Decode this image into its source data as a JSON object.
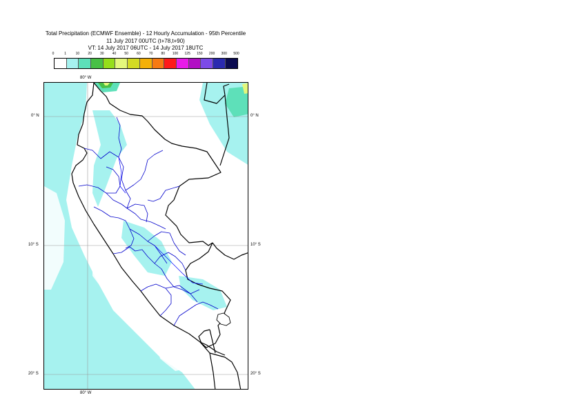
{
  "title": {
    "line1": "Total Precipitation (ECMWF Ensemble) - 12 Hourly Accumulation - 95th Percentile",
    "line2": "11 July 2017 00UTC (t+78,t+90)",
    "line3": "VT: 14 July 2017 06UTC - 14 July 2017 18UTC"
  },
  "legend": {
    "labels": [
      "0",
      "1",
      "10",
      "20",
      "30",
      "40",
      "50",
      "60",
      "70",
      "80",
      "100",
      "125",
      "150",
      "200",
      "300",
      "500"
    ],
    "colors": [
      "#ffffff",
      "#a6f2ef",
      "#5ee0b9",
      "#48c046",
      "#96de1a",
      "#e4f77c",
      "#d3da24",
      "#f4b007",
      "#f67a12",
      "#fe1a1a",
      "#e81be8",
      "#b20fc4",
      "#7c4ae8",
      "#2a2ab0",
      "#0b0b50"
    ]
  },
  "map": {
    "lon_labels": {
      "top": "80° W",
      "bottom": "80° W"
    },
    "lat_labels": [
      "0° N",
      "10° S",
      "20° S"
    ],
    "colors": {
      "light": "#a6f2ef",
      "medium": "#5ee0b9",
      "green": "#48c046",
      "yellow": "#e4f77c",
      "borders": "#000000",
      "regions": "#0000cc",
      "grid": "#999999"
    }
  }
}
